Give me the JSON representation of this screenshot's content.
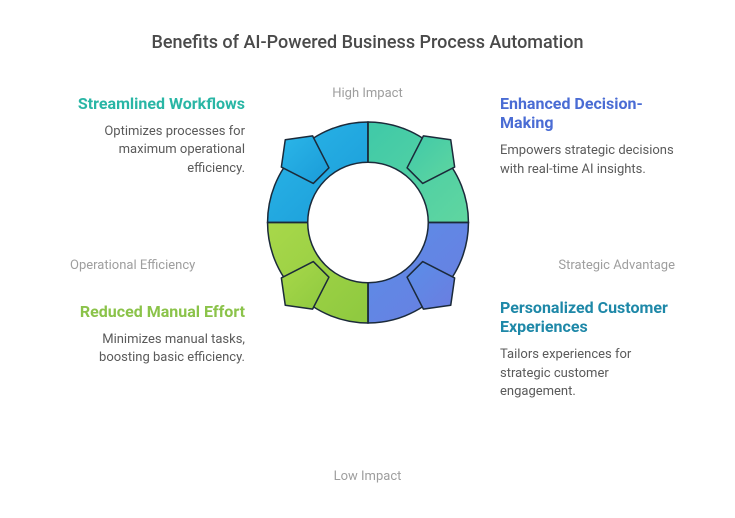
{
  "title": "Benefits of AI-Powered Business Process Automation",
  "axes": {
    "top": "High Impact",
    "bottom": "Low Impact",
    "left": "Operational Efficiency",
    "right": "Strategic Advantage"
  },
  "quadrants": {
    "top_left": {
      "heading": "Streamlined Workflows",
      "desc": "Optimizes processes for maximum operational efficiency.",
      "heading_color": "#29b6a5"
    },
    "top_right": {
      "heading": "Enhanced Decision-Making",
      "desc": "Empowers strategic decisions with real-time AI insights.",
      "heading_color": "#4a6cd4"
    },
    "bottom_left": {
      "heading": "Reduced Manual Effort",
      "desc": "Minimizes manual tasks, boosting basic efficiency.",
      "heading_color": "#8bc34a"
    },
    "bottom_right": {
      "heading": "Personalized Customer Experiences",
      "desc": "Tailors experiences for strategic customer engagement.",
      "heading_color": "#1e88a8"
    }
  },
  "diagram": {
    "type": "circular-arrow-cycle",
    "outer_radius": 100,
    "inner_radius": 60,
    "stroke_color": "#1b2a3a",
    "stroke_width": 1.5,
    "background": "#ffffff",
    "segments": [
      {
        "position": "top_left",
        "gradient_from": "#2bb6e8",
        "gradient_to": "#1a9bd8"
      },
      {
        "position": "top_right",
        "gradient_from": "#3fc9a8",
        "gradient_to": "#60d6a0"
      },
      {
        "position": "bottom_right",
        "gradient_from": "#5a8ee8",
        "gradient_to": "#6b7de0"
      },
      {
        "position": "bottom_left",
        "gradient_from": "#a8d84a",
        "gradient_to": "#8ec93f"
      }
    ]
  },
  "typography": {
    "title_fontsize": 18,
    "title_color": "#4a4a4a",
    "heading_fontsize": 16,
    "heading_weight": 700,
    "desc_fontsize": 13,
    "desc_color": "#5a5a5a",
    "axis_fontsize": 13,
    "axis_color": "#9e9e9e"
  }
}
